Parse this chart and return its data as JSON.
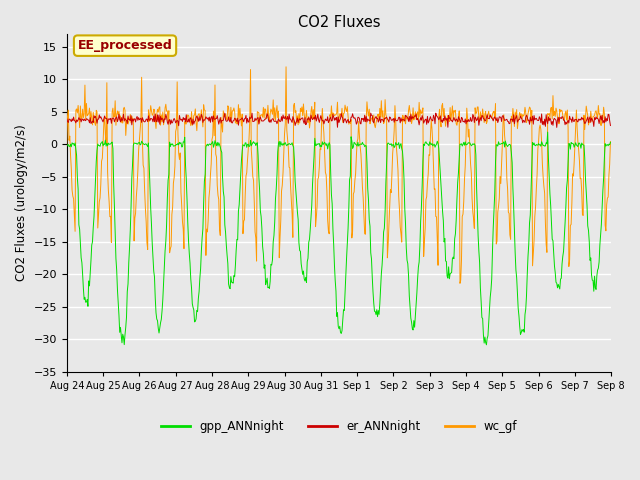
{
  "title": "CO2 Fluxes",
  "ylabel": "CO2 Fluxes (urology/m2/s)",
  "ylim": [
    -35,
    17
  ],
  "yticks": [
    -35,
    -30,
    -25,
    -20,
    -15,
    -10,
    -5,
    0,
    5,
    10,
    15
  ],
  "background_color": "#e8e8e8",
  "plot_bg_color": "#e8e8e8",
  "line_colors": {
    "gpp": "#00dd00",
    "er": "#cc0000",
    "wc": "#ff9900"
  },
  "legend_labels": [
    "gpp_ANNnight",
    "er_ANNnight",
    "wc_gf"
  ],
  "annotation_text": "EE_processed",
  "annotation_color": "#990000",
  "annotation_bg": "#ffffcc",
  "annotation_border": "#ccaa00",
  "n_days": 15,
  "seed": 42,
  "figsize": [
    6.4,
    4.8
  ],
  "dpi": 100
}
